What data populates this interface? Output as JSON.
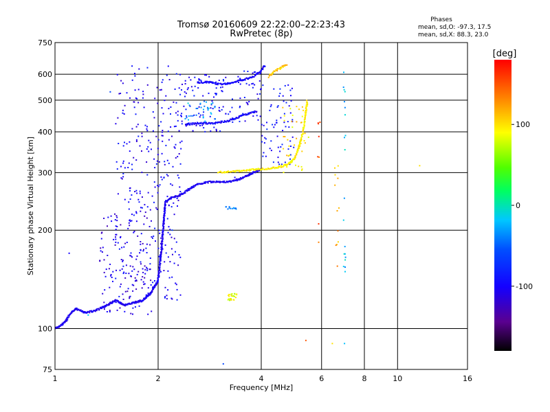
{
  "chart_data": {
    "type": "scatter",
    "title": "Tromsø 20160609 22:22:00–22:23:43",
    "subtitle": "RwPretec (8p)",
    "stats": {
      "heading": "Phases",
      "line_o": "mean, sd,O: -97.3, 17.5",
      "line_x": "mean, sd,X:  88.3, 23.0"
    },
    "xlabel": "Frequency [MHz]",
    "ylabel": "Stationary phase Virtual Height [km]",
    "xscale": "log",
    "yscale": "log",
    "xlim": [
      1,
      16
    ],
    "ylim": [
      75,
      750
    ],
    "xticks": [
      1,
      2,
      4,
      6,
      8,
      10,
      16
    ],
    "yticks": [
      75,
      100,
      200,
      300,
      400,
      500,
      600,
      750
    ],
    "xgrid": [
      2,
      4,
      6,
      8,
      10
    ],
    "ygrid": [
      100,
      200,
      300,
      400,
      500,
      600
    ],
    "colorbar": {
      "label": "[deg]",
      "range": [
        -180,
        180
      ],
      "ticks": [
        100,
        0,
        -100
      ]
    },
    "o_trace": [
      [
        1.0,
        100
      ],
      [
        1.05,
        103
      ],
      [
        1.08,
        106
      ],
      [
        1.1,
        110
      ],
      [
        1.15,
        115
      ],
      [
        1.22,
        112
      ],
      [
        1.3,
        113
      ],
      [
        1.4,
        117
      ],
      [
        1.5,
        122
      ],
      [
        1.6,
        118
      ],
      [
        1.7,
        120
      ],
      [
        1.8,
        122
      ],
      [
        1.9,
        128
      ],
      [
        2.0,
        140
      ],
      [
        2.05,
        180
      ],
      [
        2.1,
        245
      ],
      [
        2.2,
        252
      ],
      [
        2.3,
        255
      ],
      [
        2.4,
        262
      ],
      [
        2.5,
        270
      ],
      [
        2.6,
        276
      ],
      [
        2.75,
        280
      ],
      [
        2.9,
        282
      ],
      [
        3.1,
        281
      ],
      [
        3.3,
        282
      ],
      [
        3.5,
        288
      ],
      [
        3.7,
        296
      ],
      [
        3.9,
        304
      ],
      [
        4.0,
        307
      ]
    ],
    "o_upper_trace": [
      [
        2.4,
        420
      ],
      [
        2.6,
        425
      ],
      [
        2.9,
        425
      ],
      [
        3.2,
        432
      ],
      [
        3.6,
        452
      ],
      [
        3.9,
        462
      ]
    ],
    "o_high_trace": [
      [
        2.6,
        565
      ],
      [
        2.8,
        568
      ],
      [
        3.0,
        560
      ],
      [
        3.2,
        562
      ],
      [
        3.5,
        575
      ],
      [
        3.8,
        590
      ],
      [
        4.0,
        615
      ],
      [
        4.1,
        640
      ]
    ],
    "x_trace": [
      [
        3.0,
        301
      ],
      [
        3.3,
        302
      ],
      [
        3.6,
        305
      ],
      [
        3.9,
        307
      ],
      [
        4.2,
        308
      ],
      [
        4.5,
        312
      ],
      [
        4.8,
        318
      ],
      [
        5.0,
        330
      ],
      [
        5.1,
        350
      ],
      [
        5.2,
        372
      ],
      [
        5.3,
        400
      ],
      [
        5.35,
        430
      ],
      [
        5.4,
        460
      ],
      [
        5.45,
        500
      ]
    ],
    "x_high_trace": [
      [
        4.2,
        590
      ],
      [
        4.4,
        615
      ],
      [
        4.6,
        630
      ],
      [
        4.75,
        645
      ]
    ],
    "scatter_clusters": [
      {
        "fmin": 1.5,
        "fmax": 2.35,
        "hmin": 120,
        "hmax": 640,
        "phase": -100,
        "n": 320
      },
      {
        "fmin": 1.35,
        "fmax": 1.95,
        "hmin": 110,
        "hmax": 230,
        "phase": -110,
        "n": 120
      },
      {
        "fmin": 2.3,
        "fmax": 3.3,
        "hmin": 400,
        "hmax": 600,
        "phase": -95,
        "n": 90
      },
      {
        "fmin": 3.4,
        "fmax": 4.0,
        "hmin": 430,
        "hmax": 620,
        "phase": -95,
        "n": 40
      },
      {
        "fmin": 4.0,
        "fmax": 5.0,
        "hmin": 315,
        "hmax": 560,
        "phase": -90,
        "n": 70
      },
      {
        "fmin": 2.4,
        "fmax": 3.0,
        "hmin": 430,
        "hmax": 500,
        "phase": -30,
        "n": 30
      },
      {
        "fmin": 4.6,
        "fmax": 5.5,
        "hmin": 300,
        "hmax": 480,
        "phase": 100,
        "n": 40
      },
      {
        "fmin": 3.2,
        "fmax": 3.4,
        "hmin": 122,
        "hmax": 128,
        "phase": 85,
        "n": 25
      },
      {
        "fmin": 3.1,
        "fmax": 3.4,
        "hmin": 232,
        "hmax": 236,
        "phase": -40,
        "n": 12
      },
      {
        "fmin": 6.95,
        "fmax": 7.05,
        "hmin": 140,
        "hmax": 640,
        "phase": -20,
        "n": 20
      },
      {
        "fmin": 6.55,
        "fmax": 6.75,
        "hmin": 150,
        "hmax": 320,
        "phase": 120,
        "n": 12
      },
      {
        "fmin": 5.85,
        "fmax": 5.95,
        "hmin": 160,
        "hmax": 440,
        "phase": 150,
        "n": 8
      }
    ],
    "isolated_points": [
      [
        1.1,
        170,
        -100
      ],
      [
        1.45,
        530,
        -60
      ],
      [
        1.25,
        110,
        -20
      ],
      [
        3.1,
        78,
        -60
      ],
      [
        5.4,
        92,
        150
      ],
      [
        6.45,
        90,
        100
      ],
      [
        7.0,
        90,
        -20
      ],
      [
        11.6,
        315,
        100
      ],
      [
        3.35,
        290,
        -100
      ],
      [
        2.1,
        180,
        -100
      ],
      [
        2.2,
        200,
        -60
      ]
    ]
  }
}
